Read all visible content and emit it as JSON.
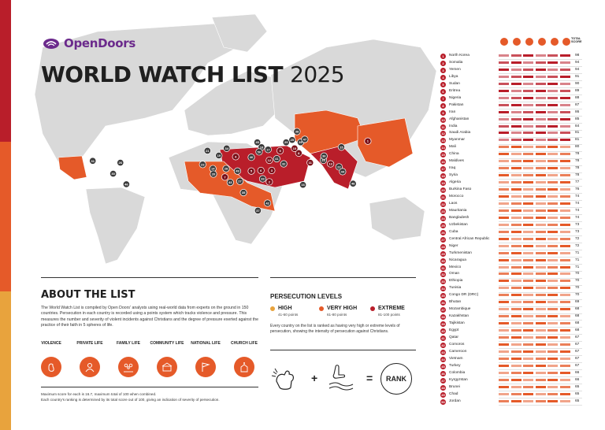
{
  "brand": {
    "name": "OpenDoors"
  },
  "title": {
    "main": "WORLD WATCH LIST",
    "year": "2025"
  },
  "about": {
    "heading": "ABOUT THE LIST",
    "body": "The World Watch List is compiled by Open Doors' analysts using real-world data from experts on the ground in 150 countries. Persecution in each country is recorded using a points system which tracks violence and pressure. This measures the number and severity of violent incidents against Christians and the degree of pressure exerted against the practice of their faith in 5 spheres of life.",
    "categories": [
      {
        "label": "VIOLENCE",
        "icon": "fist-icon"
      },
      {
        "label": "PRIVATE LIFE",
        "icon": "person-icon"
      },
      {
        "label": "FAMILY LIFE",
        "icon": "family-icon"
      },
      {
        "label": "COMMUNITY LIFE",
        "icon": "community-icon"
      },
      {
        "label": "NATIONAL LIFE",
        "icon": "flag-icon"
      },
      {
        "label": "CHURCH LIFE",
        "icon": "church-icon"
      }
    ],
    "footnote_1": "Maximum score for each is 16.7, maximum total of 100 when combined.",
    "footnote_2": "Each country's ranking is determined by its total score out of 100, giving an indication of severity of persecution."
  },
  "levels": {
    "heading": "PERSECUTION LEVELS",
    "items": [
      {
        "name": "HIGH",
        "points": "41-60 points",
        "color": "#e8a33d"
      },
      {
        "name": "VERY HIGH",
        "points": "61-80 points",
        "color": "#e55a29"
      },
      {
        "name": "EXTREME",
        "points": "81-100 points",
        "color": "#b91e2a"
      }
    ],
    "description": "Every country on the list is ranked as having very high or extreme levels of persecution, showing the intensity of persecution against Christians.",
    "equation": {
      "plus": "+",
      "equals": "=",
      "rank": "RANK"
    }
  },
  "table": {
    "total_header": "TOTAL SCORE",
    "rows": [
      {
        "rank": "1",
        "country": "North Korea",
        "score": "98"
      },
      {
        "rank": "2",
        "country": "Somalia",
        "score": "94"
      },
      {
        "rank": "3",
        "country": "Yemen",
        "score": "94"
      },
      {
        "rank": "4",
        "country": "Libya",
        "score": "91"
      },
      {
        "rank": "5",
        "country": "Sudan",
        "score": "90"
      },
      {
        "rank": "6",
        "country": "Eritrea",
        "score": "89"
      },
      {
        "rank": "7",
        "country": "Nigeria",
        "score": "88"
      },
      {
        "rank": "8",
        "country": "Pakistan",
        "score": "87"
      },
      {
        "rank": "9",
        "country": "Iran",
        "score": "86"
      },
      {
        "rank": "10",
        "country": "Afghanistan",
        "score": "85"
      },
      {
        "rank": "11",
        "country": "India",
        "score": "84"
      },
      {
        "rank": "12",
        "country": "Saudi Arabia",
        "score": "81"
      },
      {
        "rank": "13",
        "country": "Myanmar",
        "score": "81"
      },
      {
        "rank": "14",
        "country": "Mali",
        "score": "80"
      },
      {
        "rank": "15",
        "country": "China",
        "score": "78"
      },
      {
        "rank": "16",
        "country": "Maldives",
        "score": "78"
      },
      {
        "rank": "17",
        "country": "Iraq",
        "score": "78"
      },
      {
        "rank": "18",
        "country": "Syria",
        "score": "78"
      },
      {
        "rank": "19",
        "country": "Algeria",
        "score": "77"
      },
      {
        "rank": "20",
        "country": "Burkina Faso",
        "score": "76"
      },
      {
        "rank": "21",
        "country": "Morocco",
        "score": "74"
      },
      {
        "rank": "22",
        "country": "Laos",
        "score": "74"
      },
      {
        "rank": "23",
        "country": "Mauritania",
        "score": "74"
      },
      {
        "rank": "24",
        "country": "Bangladesh",
        "score": "74"
      },
      {
        "rank": "25",
        "country": "Uzbekistan",
        "score": "73"
      },
      {
        "rank": "26",
        "country": "Cuba",
        "score": "73"
      },
      {
        "rank": "27",
        "country": "Central African Republic",
        "score": "72"
      },
      {
        "rank": "28",
        "country": "Niger",
        "score": "72"
      },
      {
        "rank": "29",
        "country": "Turkmenistan",
        "score": "71"
      },
      {
        "rank": "30",
        "country": "Nicaragua",
        "score": "71"
      },
      {
        "rank": "31",
        "country": "Mexico",
        "score": "71"
      },
      {
        "rank": "32",
        "country": "Oman",
        "score": "70"
      },
      {
        "rank": "33",
        "country": "Ethiopia",
        "score": "70"
      },
      {
        "rank": "34",
        "country": "Tunisia",
        "score": "70"
      },
      {
        "rank": "35",
        "country": "Congo DR (DRC)",
        "score": "70"
      },
      {
        "rank": "36",
        "country": "Bhutan",
        "score": "69"
      },
      {
        "rank": "37",
        "country": "Mozambique",
        "score": "68"
      },
      {
        "rank": "38",
        "country": "Kazakhstan",
        "score": "68"
      },
      {
        "rank": "39",
        "country": "Tajikistan",
        "score": "68"
      },
      {
        "rank": "40",
        "country": "Egypt",
        "score": "68"
      },
      {
        "rank": "41",
        "country": "Qatar",
        "score": "67"
      },
      {
        "rank": "42",
        "country": "Comoros",
        "score": "67"
      },
      {
        "rank": "43",
        "country": "Cameroon",
        "score": "67"
      },
      {
        "rank": "44",
        "country": "Vietnam",
        "score": "67"
      },
      {
        "rank": "45",
        "country": "Turkey",
        "score": "67"
      },
      {
        "rank": "46",
        "country": "Colombia",
        "score": "66"
      },
      {
        "rank": "47",
        "country": "Kyrgyzstan",
        "score": "66"
      },
      {
        "rank": "48",
        "country": "Brunei",
        "score": "65"
      },
      {
        "rank": "49",
        "country": "Chad",
        "score": "65"
      },
      {
        "rank": "50",
        "country": "Jordan",
        "score": "65"
      }
    ]
  },
  "map_markers": [
    {
      "rank": "1",
      "lon": 127.0,
      "lat": 40.0
    },
    {
      "rank": "2",
      "lon": 45.0,
      "lat": 6.0
    },
    {
      "rank": "3",
      "lon": 47.0,
      "lat": 15.5
    },
    {
      "rank": "4",
      "lon": 17.0,
      "lat": 27.0
    },
    {
      "rank": "5",
      "lon": 30.0,
      "lat": 15.0
    },
    {
      "rank": "6",
      "lon": 38.0,
      "lat": 15.5
    },
    {
      "rank": "7",
      "lon": 8.0,
      "lat": 10.0
    },
    {
      "rank": "8",
      "lon": 69.5,
      "lat": 30.0
    },
    {
      "rank": "9",
      "lon": 54.0,
      "lat": 32.0
    },
    {
      "rank": "10",
      "lon": 66.0,
      "lat": 34.0
    },
    {
      "rank": "11",
      "lon": 79.0,
      "lat": 22.0
    },
    {
      "rank": "12",
      "lon": 45.0,
      "lat": 24.0
    },
    {
      "rank": "13",
      "lon": 96.0,
      "lat": 21.0
    },
    {
      "rank": "14",
      "lon": -2.0,
      "lat": 17.0
    },
    {
      "rank": "15",
      "lon": 105.0,
      "lat": 35.0
    },
    {
      "rank": "16",
      "lon": 73.0,
      "lat": 3.5
    },
    {
      "rank": "17",
      "lon": 44.0,
      "lat": 33.0
    },
    {
      "rank": "18",
      "lon": 38.5,
      "lat": 35.0
    },
    {
      "rank": "19",
      "lon": 3.0,
      "lat": 28.0
    },
    {
      "rank": "20",
      "lon": -1.5,
      "lat": 12.5
    },
    {
      "rank": "21",
      "lon": -6.5,
      "lat": 32.0
    },
    {
      "rank": "22",
      "lon": 103.0,
      "lat": 18.5
    },
    {
      "rank": "23",
      "lon": -10.5,
      "lat": 20.5
    },
    {
      "rank": "24",
      "lon": 90.0,
      "lat": 24.0
    },
    {
      "rank": "25",
      "lon": 64.0,
      "lat": 41.0
    },
    {
      "rank": "26",
      "lon": -79.0,
      "lat": 22.0
    },
    {
      "rank": "27",
      "lon": 20.5,
      "lat": 6.5
    },
    {
      "rank": "28",
      "lon": 9.0,
      "lat": 17.0
    },
    {
      "rank": "29",
      "lon": 59.0,
      "lat": 39.0
    },
    {
      "rank": "30",
      "lon": -85.0,
      "lat": 12.8
    },
    {
      "rank": "31",
      "lon": -102.0,
      "lat": 23.5
    },
    {
      "rank": "32",
      "lon": 57.0,
      "lat": 21.0
    },
    {
      "rank": "33",
      "lon": 39.5,
      "lat": 8.5
    },
    {
      "rank": "34",
      "lon": 9.5,
      "lat": 34.0
    },
    {
      "rank": "35",
      "lon": 23.5,
      "lat": -3.0
    },
    {
      "rank": "36",
      "lon": 90.5,
      "lat": 27.5
    },
    {
      "rank": "37",
      "lon": 35.5,
      "lat": -18.0
    },
    {
      "rank": "38",
      "lon": 68.0,
      "lat": 48.0
    },
    {
      "rank": "39",
      "lon": 71.0,
      "lat": 39.0
    },
    {
      "rank": "40",
      "lon": 30.0,
      "lat": 26.5
    },
    {
      "rank": "41",
      "lon": 51.2,
      "lat": 25.3
    },
    {
      "rank": "42",
      "lon": 43.5,
      "lat": -11.8
    },
    {
      "rank": "43",
      "lon": 12.5,
      "lat": 5.5
    },
    {
      "rank": "44",
      "lon": 106.0,
      "lat": 14.5
    },
    {
      "rank": "45",
      "lon": 35.0,
      "lat": 39.0
    },
    {
      "rank": "46",
      "lon": -74.0,
      "lat": 4.0
    },
    {
      "rank": "47",
      "lon": 74.5,
      "lat": 41.5
    },
    {
      "rank": "48",
      "lon": 114.7,
      "lat": 4.5
    },
    {
      "rank": "49",
      "lon": 18.5,
      "lat": 15.0
    },
    {
      "rank": "50",
      "lon": 36.5,
      "lat": 31.0
    }
  ]
}
